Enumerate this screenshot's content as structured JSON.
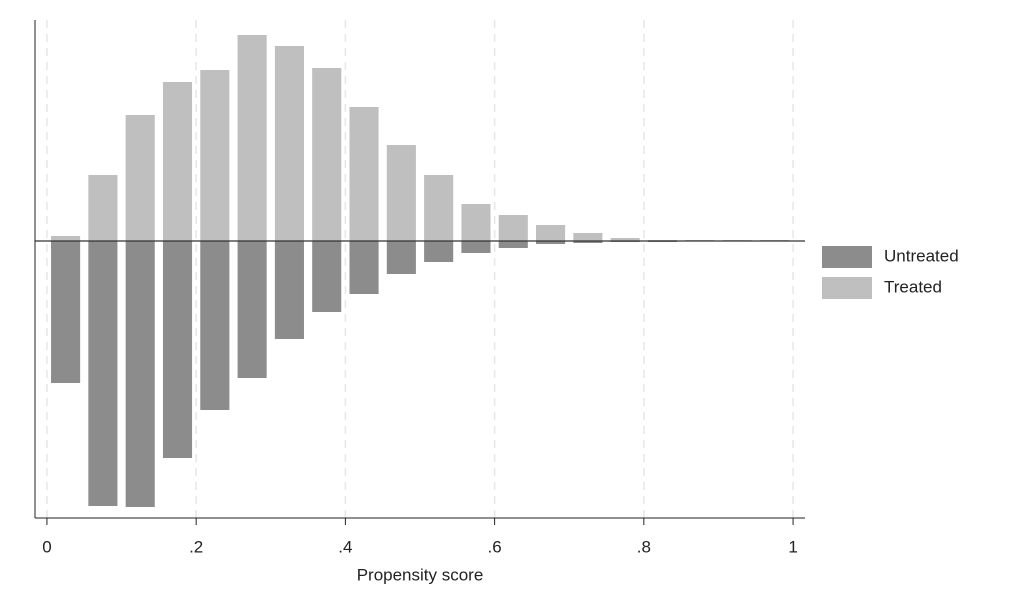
{
  "chart_data": {
    "type": "mirrored_histogram",
    "xlabel": "Propensity score",
    "bins": [
      0,
      0.05,
      0.1,
      0.15,
      0.2,
      0.25,
      0.3,
      0.35,
      0.4,
      0.45,
      0.5,
      0.55,
      0.6,
      0.65,
      0.7,
      0.75,
      0.8,
      0.85,
      0.9,
      0.95,
      1
    ],
    "series": [
      {
        "name": "Untreated",
        "color": "#8c8c8c",
        "values": [
          -142,
          -265,
          -266,
          -217,
          -169,
          -137,
          -98,
          -71,
          -53,
          -33,
          -21,
          -12,
          -7,
          -3,
          -2,
          -1,
          -1,
          -0.5,
          -0.5,
          -0.5
        ]
      },
      {
        "name": "Treated",
        "color": "#bfbfbf",
        "values": [
          5,
          66,
          126,
          159,
          171,
          206,
          195,
          173,
          134,
          96,
          66,
          37,
          26,
          16,
          8,
          3,
          1,
          1,
          1,
          1
        ]
      }
    ],
    "xlim": [
      -0.016,
      1.016
    ],
    "ylim": [
      -277,
      221
    ],
    "xticks": [
      0,
      {
        "value": 0.2,
        "label": ".2"
      },
      {
        "value": 0.4,
        "label": ".4"
      },
      {
        "value": 0.6,
        "label": ".6"
      },
      {
        "value": 0.8,
        "label": ".8"
      },
      1
    ],
    "grid": true,
    "legend": "right"
  }
}
